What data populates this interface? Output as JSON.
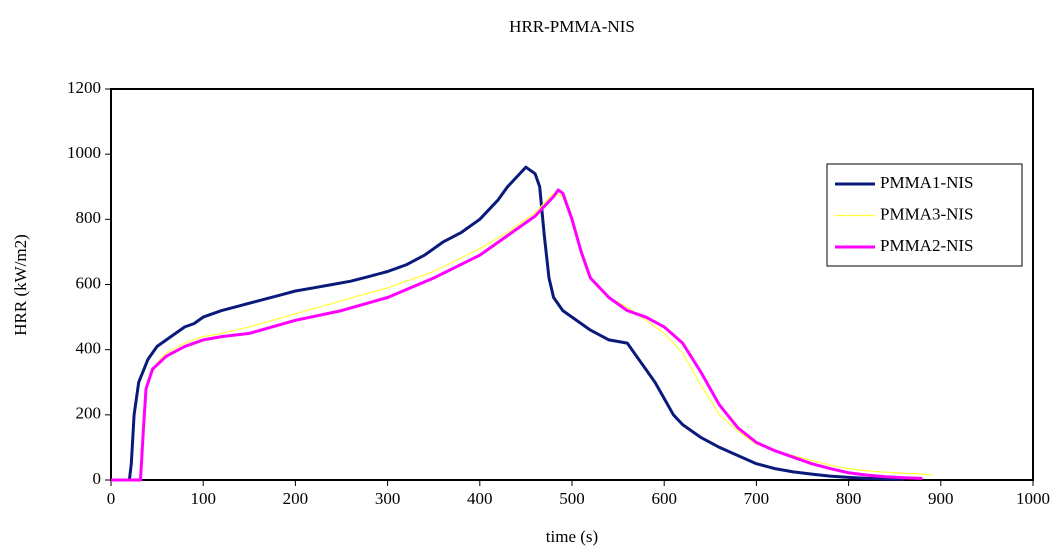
{
  "chart_data": {
    "type": "line",
    "title": "HRR-PMMA-NIS",
    "xlabel": "time (s)",
    "ylabel": "HRR (kW/m2)",
    "xlim": [
      0,
      1000
    ],
    "ylim": [
      0,
      1200
    ],
    "xticks": [
      0,
      100,
      200,
      300,
      400,
      500,
      600,
      700,
      800,
      900,
      1000
    ],
    "yticks": [
      0,
      200,
      400,
      600,
      800,
      1000,
      1200
    ],
    "grid": false,
    "legend": "right",
    "series": [
      {
        "name": "PMMA1-NIS",
        "color": "#0a1a7a",
        "line_width": 3,
        "x": [
          0,
          20,
          22,
          25,
          30,
          40,
          50,
          60,
          70,
          80,
          90,
          100,
          120,
          140,
          160,
          180,
          200,
          220,
          240,
          260,
          280,
          300,
          320,
          340,
          360,
          380,
          400,
          420,
          430,
          440,
          450,
          460,
          465,
          470,
          475,
          480,
          490,
          500,
          520,
          540,
          560,
          570,
          580,
          590,
          600,
          610,
          620,
          640,
          660,
          680,
          700,
          720,
          740,
          760,
          780,
          800,
          820,
          840,
          860
        ],
        "values": [
          0,
          0,
          50,
          200,
          300,
          370,
          410,
          430,
          450,
          470,
          480,
          500,
          520,
          535,
          550,
          565,
          580,
          590,
          600,
          610,
          625,
          640,
          660,
          690,
          730,
          760,
          800,
          860,
          900,
          930,
          960,
          940,
          900,
          750,
          620,
          560,
          520,
          500,
          460,
          430,
          420,
          380,
          340,
          300,
          250,
          200,
          170,
          130,
          100,
          75,
          50,
          35,
          25,
          18,
          12,
          8,
          5,
          3,
          2
        ]
      },
      {
        "name": "PMMA3-NIS",
        "color": "#ffff33",
        "line_width": 1.2,
        "x": [
          0,
          32,
          35,
          40,
          50,
          60,
          80,
          100,
          120,
          150,
          200,
          250,
          300,
          350,
          400,
          430,
          460,
          480,
          490,
          500,
          510,
          520,
          540,
          560,
          580,
          600,
          620,
          640,
          660,
          680,
          700,
          720,
          740,
          760,
          780,
          800,
          820,
          840,
          860,
          880,
          890
        ],
        "values": [
          0,
          0,
          200,
          300,
          360,
          390,
          420,
          440,
          450,
          470,
          510,
          550,
          590,
          640,
          710,
          760,
          820,
          880,
          870,
          800,
          700,
          620,
          560,
          530,
          490,
          450,
          390,
          290,
          200,
          150,
          110,
          90,
          75,
          60,
          45,
          35,
          28,
          24,
          21,
          18,
          15
        ]
      },
      {
        "name": "PMMA2-NIS",
        "color": "#ff00ff",
        "line_width": 3,
        "x": [
          0,
          32,
          35,
          38,
          45,
          60,
          80,
          100,
          120,
          150,
          200,
          250,
          300,
          350,
          400,
          430,
          460,
          480,
          485,
          490,
          500,
          510,
          520,
          540,
          560,
          580,
          600,
          620,
          640,
          660,
          680,
          700,
          720,
          740,
          760,
          780,
          800,
          820,
          840,
          860,
          880
        ],
        "values": [
          0,
          0,
          150,
          280,
          340,
          380,
          410,
          430,
          440,
          450,
          490,
          520,
          560,
          620,
          690,
          750,
          810,
          870,
          890,
          880,
          800,
          700,
          620,
          560,
          520,
          500,
          470,
          420,
          330,
          230,
          160,
          115,
          90,
          70,
          50,
          35,
          22,
          15,
          10,
          7,
          5
        ]
      }
    ]
  }
}
